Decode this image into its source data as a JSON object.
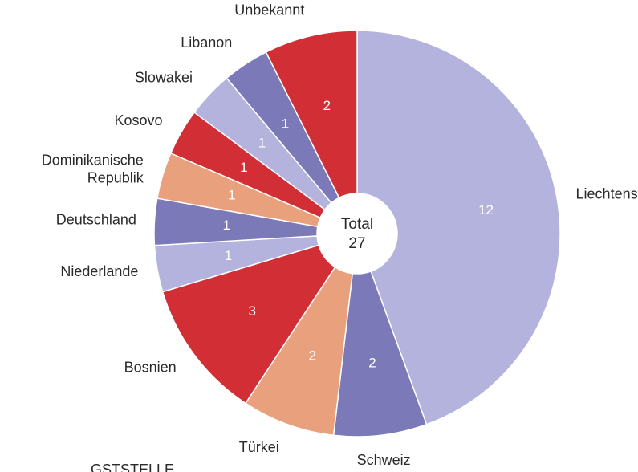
{
  "chart_data": {
    "type": "donut",
    "categories": [
      "Liechtenstein",
      "Schweiz",
      "Türkei",
      "Bosnien",
      "Niederlande",
      "Deutschland",
      "Dominikanische Republik",
      "Kosovo",
      "Slowakei",
      "Libanon",
      "Unbekannt"
    ],
    "values": [
      12,
      2,
      2,
      3,
      1,
      1,
      1,
      1,
      1,
      1,
      2
    ],
    "colors": [
      "#b3b3dd",
      "#7b79b8",
      "#e9a07c",
      "#d12f35",
      "#b3b3dd",
      "#7b79b8",
      "#e9a07c",
      "#d12f35",
      "#b3b3dd",
      "#7b79b8",
      "#d12f35"
    ],
    "center_label": "Total",
    "total": 27
  },
  "footer_text": "GSTSTELLE"
}
